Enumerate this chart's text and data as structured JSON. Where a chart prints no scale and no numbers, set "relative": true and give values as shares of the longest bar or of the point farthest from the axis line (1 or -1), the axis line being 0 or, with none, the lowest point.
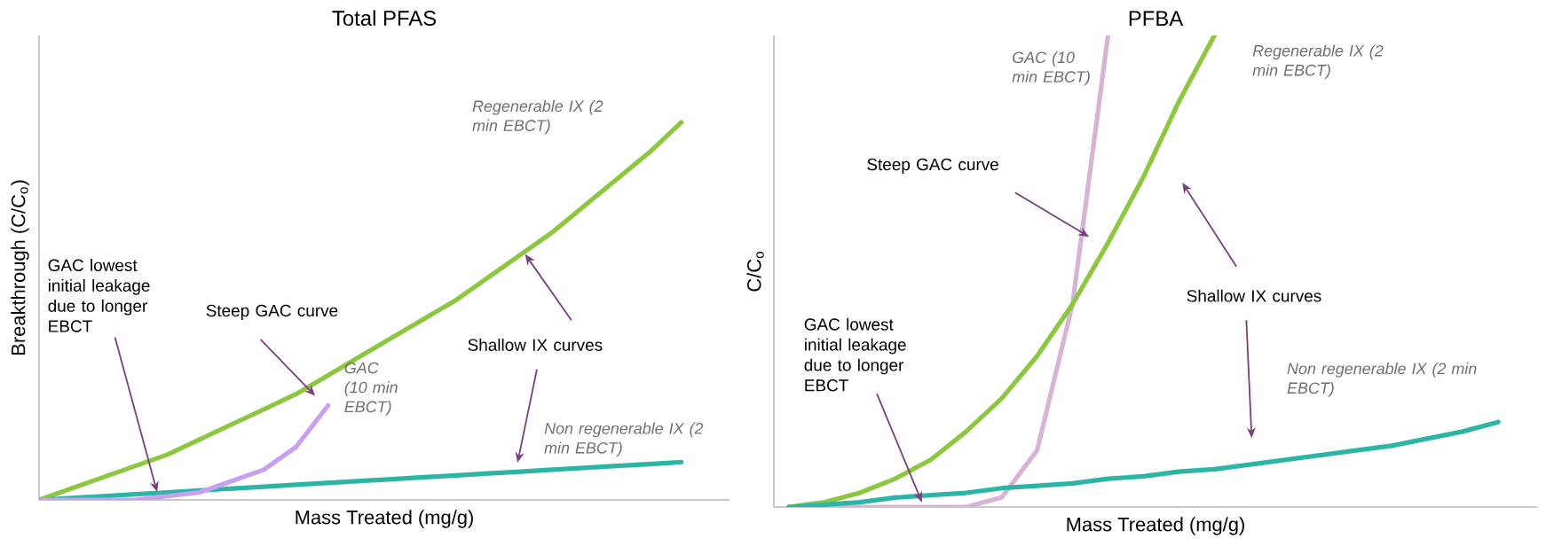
{
  "chart_data": [
    {
      "type": "line",
      "title": "Total PFAS",
      "xlabel": "Mass Treated (mg/g)",
      "ylabel": "Breakthrough (C/C$_{o}$)",
      "relative": true,
      "legend": false,
      "marker": "none",
      "categories": [
        null,
        null,
        null,
        null,
        null,
        null,
        null,
        null,
        null,
        null,
        null,
        null,
        null,
        null,
        null,
        null,
        null,
        null,
        null,
        null,
        null
      ],
      "series": [
        {
          "name": "Regenerable IX (2 min EBCT)",
          "color": "#8dc63f",
          "values": [
            0,
            0.03,
            0.06,
            0.09,
            0.12,
            0.16,
            0.2,
            0.24,
            0.28,
            0.33,
            0.38,
            0.43,
            0.48,
            0.53,
            0.59,
            0.65,
            0.71,
            0.78,
            0.85,
            0.92,
            1
          ]
        },
        {
          "name": "Non regenerable IX (2 min EBCT)",
          "color": "#2cb5a6",
          "values": [
            0,
            0.005,
            0.01,
            0.015,
            0.02,
            0.025,
            0.03,
            0.035,
            0.04,
            0.045,
            0.05,
            0.055,
            0.06,
            0.065,
            0.07,
            0.075,
            0.08,
            0.085,
            0.09,
            0.095,
            0.1
          ]
        },
        {
          "name": "GAC (10 min EBCT)",
          "color": "#c9a0f0",
          "values": [
            0,
            0,
            0,
            0,
            0.01,
            0.02,
            0.05,
            0.08,
            0.14,
            0.25,
            null,
            null,
            null,
            null,
            null,
            null,
            null,
            null,
            null,
            null,
            null
          ]
        }
      ],
      "annotations": [
        "GAC lowest initial leakage due to longer EBCT",
        "Steep GAC curve",
        "Shallow IX curves"
      ]
    },
    {
      "type": "line",
      "title": "PFBA",
      "xlabel": "Mass Treated (mg/g)",
      "ylabel": "C/C$_{o}$",
      "relative": true,
      "legend": false,
      "marker": "none",
      "categories": [
        null,
        null,
        null,
        null,
        null,
        null,
        null,
        null,
        null,
        null,
        null,
        null,
        null,
        null,
        null,
        null,
        null,
        null,
        null,
        null,
        null
      ],
      "series": [
        {
          "name": "GAC (10 min EBCT)",
          "color": "#d8b4d4",
          "values": [
            0,
            0,
            0,
            0,
            0,
            0,
            0.02,
            0.12,
            0.43,
            1,
            null,
            null,
            null,
            null,
            null,
            null,
            null,
            null,
            null,
            null,
            null
          ]
        },
        {
          "name": "Regenerable IX (2 min EBCT)",
          "color": "#8dc63f",
          "values": [
            0,
            0.01,
            0.03,
            0.06,
            0.1,
            0.16,
            0.23,
            0.32,
            0.43,
            0.56,
            0.7,
            0.86,
            1,
            null,
            null,
            null,
            null,
            null,
            null,
            null,
            null
          ]
        },
        {
          "name": "Non regenerable IX (2 min EBCT)",
          "color": "#2cb5a6",
          "values": [
            0,
            0.005,
            0.01,
            0.02,
            0.025,
            0.03,
            0.04,
            0.045,
            0.05,
            0.06,
            0.065,
            0.075,
            0.08,
            0.09,
            0.1,
            0.11,
            0.12,
            0.13,
            0.145,
            0.16,
            0.18
          ]
        }
      ],
      "annotations": [
        "GAC lowest initial leakage due to longer EBCT",
        "Steep GAC curve",
        "Shallow IX curves"
      ]
    }
  ]
}
